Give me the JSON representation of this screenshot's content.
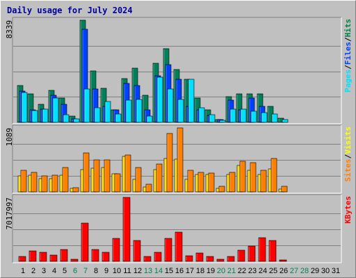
{
  "chart_data": {
    "type": "bar",
    "title": "Daily usage for July 2024",
    "categories": [
      "1",
      "2",
      "3",
      "4",
      "5",
      "6",
      "7",
      "8",
      "9",
      "10",
      "11",
      "12",
      "13",
      "14",
      "15",
      "16",
      "17",
      "18",
      "19",
      "20",
      "21",
      "22",
      "23",
      "24",
      "25",
      "26",
      "27",
      "28",
      "29",
      "30",
      "31"
    ],
    "weekend_days": [
      "6",
      "7",
      "13",
      "14",
      "20",
      "21",
      "27",
      "28"
    ],
    "panels": [
      {
        "id": "hits",
        "max_label": "8339",
        "ylim": [
          0,
          8339
        ],
        "legend": [
          "Pages",
          "/",
          "Files",
          "/",
          "Hits"
        ],
        "legend_colors": [
          "#00e0ff",
          "#000000",
          "#0040ff",
          "#000000",
          "#008040"
        ],
        "series": [
          {
            "name": "Hits",
            "color": "#00805a",
            "values": [
              3000,
              2300,
              1500,
              2600,
              2000,
              500,
              8339,
              4200,
              2800,
              1000,
              3600,
              4400,
              2200,
              4800,
              6000,
              4300,
              3500,
              2000,
              1000,
              220,
              2100,
              2300,
              2300,
              2300,
              1300,
              330,
              0,
              0,
              0,
              0,
              0
            ]
          },
          {
            "name": "Files",
            "color": "#0040ff",
            "values": [
              2550,
              1000,
              1100,
              2200,
              1500,
              300,
              7600,
              2700,
              1300,
              1000,
              3200,
              3000,
              1000,
              3800,
              4700,
              3500,
              1300,
              1000,
              550,
              200,
              1800,
              1000,
              2000,
              1300,
              0,
              0,
              0,
              0,
              0,
              0,
              0
            ]
          },
          {
            "name": "Pages",
            "color": "#00e0ff",
            "values": [
              2450,
              950,
              1100,
              2000,
              600,
              300,
              2700,
              1200,
              1700,
              700,
              1800,
              1900,
              500,
              3700,
              2700,
              1900,
              3500,
              1200,
              600,
              150,
              1100,
              1100,
              900,
              800,
              700,
              200,
              0,
              0,
              0,
              0,
              0
            ]
          }
        ]
      },
      {
        "id": "visits",
        "max_label": "1089",
        "ylim": [
          0,
          1089
        ],
        "legend": [
          "Sites",
          "/",
          "Visits"
        ],
        "legend_colors": [
          "#ff8000",
          "#000000",
          "#ffff00"
        ],
        "series": [
          {
            "name": "Visits",
            "color": "#ffd800",
            "values": [
              270,
              280,
              230,
              230,
              280,
              55,
              380,
              400,
              420,
              310,
              600,
              210,
              80,
              380,
              570,
              560,
              210,
              300,
              300,
              60,
              300,
              450,
              370,
              300,
              390,
              50,
              0,
              0,
              0,
              0,
              0
            ]
          },
          {
            "name": "Sites",
            "color": "#ff8000",
            "values": [
              370,
              330,
              270,
              280,
              420,
              70,
              660,
              550,
              540,
              310,
              630,
              410,
              130,
              470,
              1000,
              1089,
              370,
              330,
              320,
              90,
              330,
              520,
              500,
              370,
              570,
              90,
              0,
              0,
              0,
              0,
              0
            ]
          }
        ]
      },
      {
        "id": "kbytes",
        "max_label": "7017997",
        "ylim": [
          0,
          7017997
        ],
        "legend": [
          "KBytes"
        ],
        "legend_colors": [
          "#ff0000"
        ],
        "series": [
          {
            "name": "KBytes",
            "color": "#ff0000",
            "values": [
              540000,
              1130000,
              980000,
              700000,
              1300000,
              200000,
              4200000,
              1300000,
              1000000,
              2500000,
              7017997,
              2300000,
              500000,
              1000000,
              2500000,
              3200000,
              600000,
              950000,
              500000,
              200000,
              550000,
              1200000,
              1650000,
              2600000,
              2300000,
              150000,
              0,
              0,
              0,
              0,
              0
            ]
          }
        ]
      }
    ]
  },
  "colors": {
    "background": "#c0c0c0",
    "plot_background": "#c0c0c0",
    "title": "#0000a0",
    "weekday_label": "#000000",
    "weekend_label": "#00805a",
    "grid": "#808080"
  }
}
